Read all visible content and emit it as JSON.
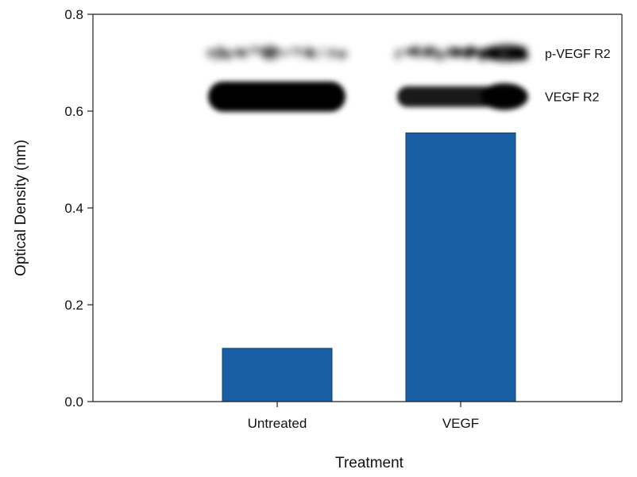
{
  "chart_data": {
    "type": "bar",
    "title": "",
    "xlabel": "Treatment",
    "ylabel": "Optical Density (nm)",
    "categories": [
      "Untreated",
      "VEGF"
    ],
    "values": [
      0.11,
      0.555
    ],
    "ylim": [
      0,
      0.8
    ],
    "yticks": [
      0.0,
      0.2,
      0.4,
      0.6,
      0.8
    ],
    "ytick_labels": [
      "0.0",
      "0.2",
      "0.4",
      "0.6",
      "0.8"
    ],
    "grid": false,
    "legend": "none",
    "bar_color": "#1a5fa3",
    "inset_blot": {
      "bands": [
        {
          "label": "p-VEGF R2",
          "y_center": 0.72,
          "lanes": [
            {
              "category": "Untreated",
              "intensity": 0.18
            },
            {
              "category": "VEGF",
              "intensity": 0.85
            }
          ]
        },
        {
          "label": "VEGF R2",
          "y_center": 0.63,
          "lanes": [
            {
              "category": "Untreated",
              "intensity": 1.0
            },
            {
              "category": "VEGF",
              "intensity": 0.9
            }
          ]
        }
      ]
    }
  }
}
